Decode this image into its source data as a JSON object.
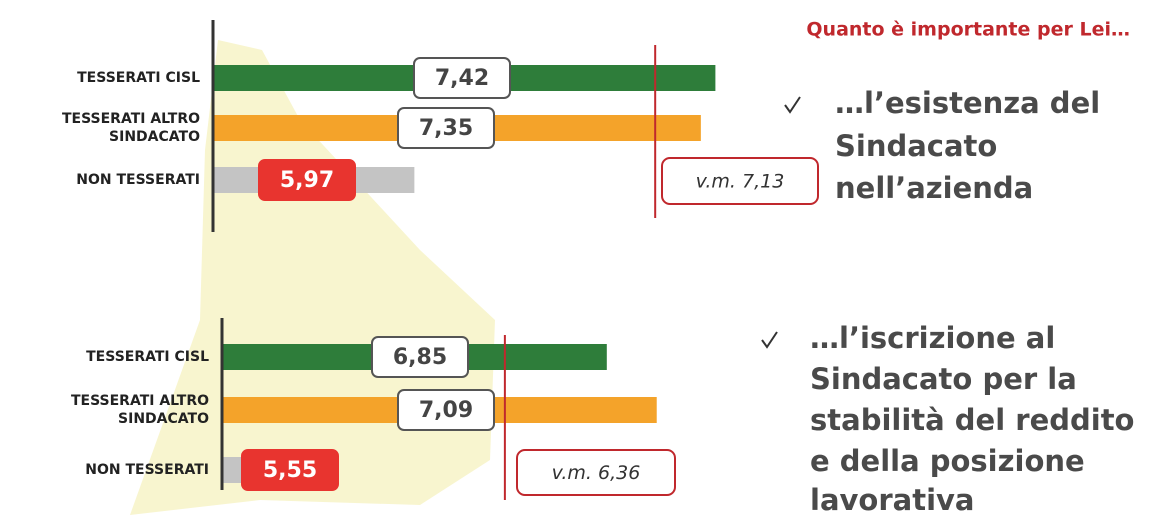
{
  "header": {
    "title": "Quanto è importante per Lei…"
  },
  "chart_data": [
    {
      "type": "bar",
      "orientation": "horizontal",
      "title_lines": [
        "…l’esistenza del",
        "Sindacato",
        "nell’azienda"
      ],
      "categories": [
        "TESSERATI CISL",
        "TESSERATI ALTRO SINDACATO",
        "NON TESSERATI"
      ],
      "values": [
        7.42,
        7.35,
        5.97
      ],
      "value_labels": [
        "7,42",
        "7,35",
        "5,97"
      ],
      "colors": [
        "#2e7d3a",
        "#f4a32a",
        "#c4c4c4"
      ],
      "xlim": [
        5,
        7.5
      ],
      "reference": {
        "value": 7.13,
        "label": "v.m. 7,13",
        "color": "#c0282d"
      }
    },
    {
      "type": "bar",
      "orientation": "horizontal",
      "title_lines": [
        "…l’iscrizione al",
        "Sindacato per la",
        "stabilità del reddito",
        "e della posizione",
        "lavorativa"
      ],
      "categories": [
        "TESSERATI CISL",
        "TESSERATI ALTRO SINDACATO",
        "NON TESSERATI"
      ],
      "values": [
        6.85,
        7.09,
        5.55
      ],
      "value_labels": [
        "6,85",
        "7,09",
        "5,55"
      ],
      "colors": [
        "#2e7d3a",
        "#f4a32a",
        "#c4c4c4"
      ],
      "xlim": [
        5,
        7.5
      ],
      "reference": {
        "value": 6.36,
        "label": "v.m. 6,36",
        "color": "#c0282d"
      }
    }
  ]
}
